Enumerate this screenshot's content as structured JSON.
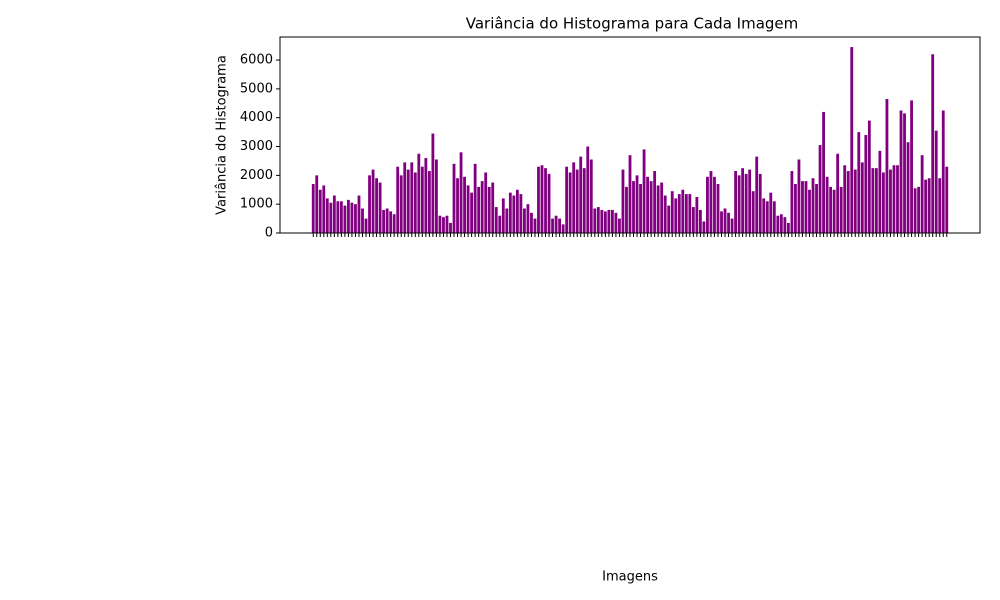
{
  "chart_data": {
    "type": "bar",
    "title": "Variância do Histograma para Cada Imagem",
    "xlabel": "Imagens",
    "ylabel": "Variância do Histograma",
    "color": "#800080",
    "ylim": [
      0,
      6800
    ],
    "yticks": [
      0,
      1000,
      2000,
      3000,
      4000,
      5000,
      6000
    ],
    "categories": [
      null,
      null,
      null,
      null,
      null,
      null,
      null,
      null,
      null,
      null,
      null,
      null,
      null,
      null,
      null,
      null,
      null,
      null,
      null,
      null,
      null,
      null,
      null,
      null,
      null,
      null,
      null,
      null,
      null,
      null,
      null,
      null,
      null,
      null,
      null,
      null,
      null,
      null,
      null,
      null,
      null,
      null,
      null,
      null,
      null,
      null,
      null,
      null,
      null,
      null,
      null,
      null,
      null,
      null,
      null,
      null,
      null,
      null,
      null,
      null,
      null,
      null,
      null,
      null,
      null,
      null,
      null,
      null,
      null,
      null,
      null,
      null,
      null,
      null,
      null,
      null,
      null,
      null,
      null,
      null,
      null,
      null,
      null,
      null,
      null,
      null,
      null,
      null,
      null,
      null,
      null,
      null,
      null,
      null,
      null,
      null,
      null,
      null,
      null,
      null,
      null,
      null,
      null,
      null,
      null,
      null,
      null,
      null,
      null,
      null,
      null,
      null,
      null,
      null,
      null,
      null,
      null,
      null,
      null,
      null,
      null,
      null,
      null,
      null,
      null,
      null,
      null,
      null,
      null,
      null,
      null,
      null,
      null,
      null,
      null,
      null,
      null,
      null,
      null,
      null,
      null,
      null,
      null,
      null,
      null,
      null,
      null,
      null,
      null,
      null,
      null,
      null,
      null,
      null,
      null,
      null,
      null,
      null,
      null,
      null,
      null,
      null,
      null,
      null,
      null,
      null,
      null,
      null,
      null,
      null,
      null,
      null,
      null,
      null,
      null,
      null,
      null,
      null,
      null,
      null,
      null
    ],
    "values": [
      1700,
      2000,
      1500,
      1650,
      1200,
      1050,
      1300,
      1100,
      1100,
      950,
      1150,
      1050,
      1000,
      1300,
      850,
      500,
      2000,
      2200,
      1900,
      1750,
      800,
      850,
      750,
      650,
      2300,
      2000,
      2450,
      2200,
      2450,
      2100,
      2750,
      2300,
      2600,
      2150,
      3450,
      2550,
      600,
      550,
      600,
      350,
      2400,
      1900,
      2800,
      1950,
      1650,
      1400,
      2400,
      1600,
      1800,
      2100,
      1600,
      1750,
      900,
      600,
      1200,
      850,
      1400,
      1300,
      1500,
      1350,
      850,
      1000,
      700,
      500,
      2300,
      2350,
      2250,
      2050,
      500,
      600,
      500,
      300,
      2300,
      2100,
      2450,
      2200,
      2650,
      2250,
      3000,
      2550,
      850,
      900,
      800,
      750,
      800,
      800,
      700,
      500,
      2200,
      1600,
      2700,
      1800,
      2000,
      1700,
      2900,
      1950,
      1800,
      2150,
      1650,
      1750,
      1300,
      950,
      1450,
      1200,
      1350,
      1500,
      1350,
      1350,
      900,
      1250,
      800,
      400,
      1950,
      2150,
      1950,
      1700,
      750,
      850,
      700,
      500,
      2150,
      2000,
      2250,
      2050,
      2200,
      1450,
      2650,
      2050,
      1200,
      1100,
      1400,
      1100,
      600,
      650,
      550,
      350,
      2150,
      1700,
      2550,
      1800,
      1800,
      1500,
      1900,
      1700,
      3050,
      4200,
      1950,
      1600,
      1500,
      2750,
      1600,
      2350,
      2150,
      6450,
      2200,
      3500,
      2450,
      3400,
      3900,
      2250,
      2250,
      2850,
      2100,
      4650,
      2200,
      2350,
      2350,
      4250,
      4150,
      3150,
      4600,
      1550,
      1600,
      2700,
      1850,
      1900,
      6200,
      3550,
      1900,
      4250,
      2300
    ]
  }
}
